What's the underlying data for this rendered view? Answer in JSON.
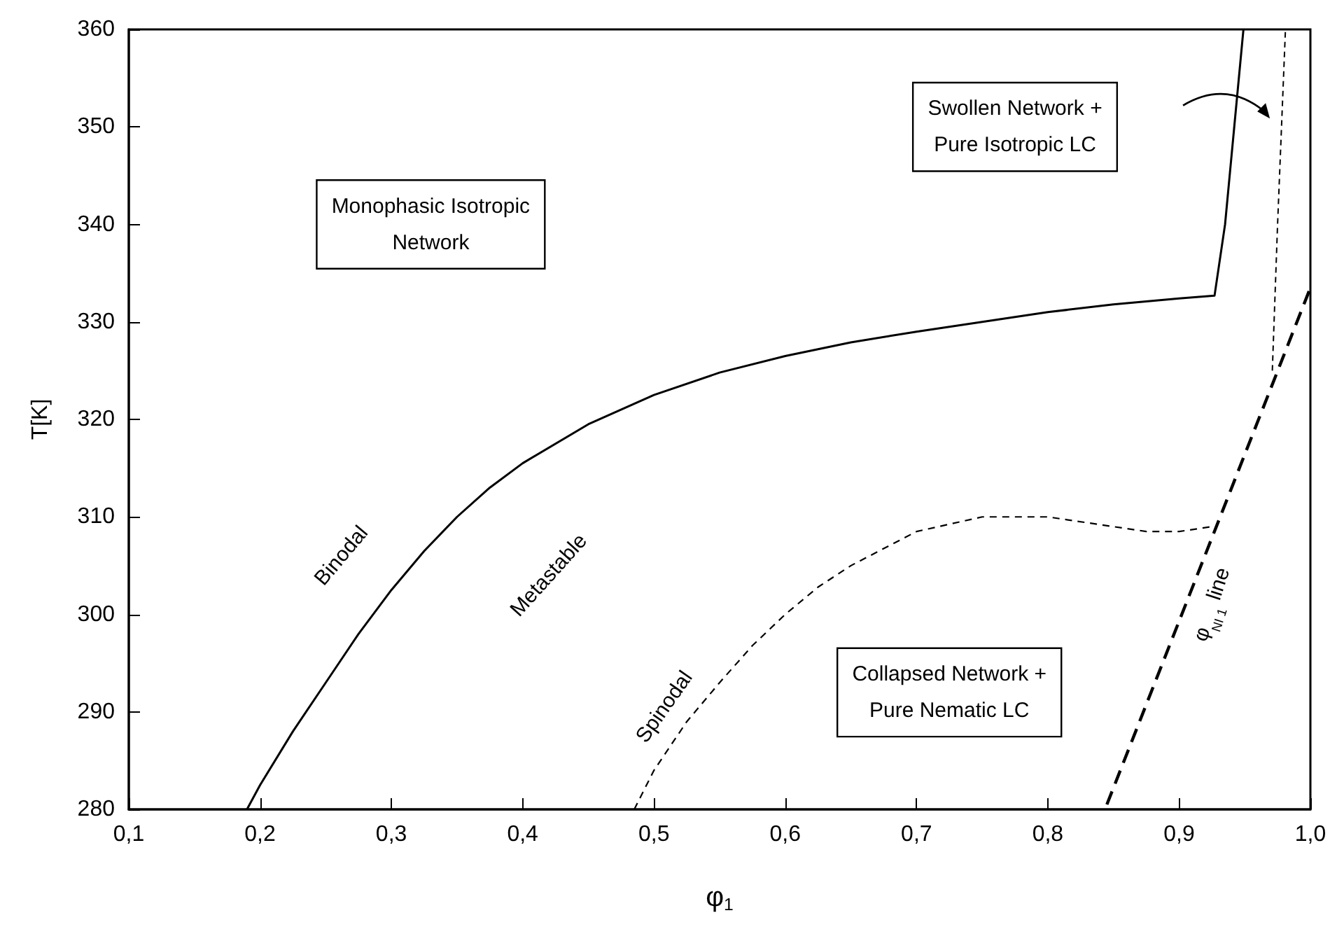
{
  "chart_data": {
    "type": "line",
    "xlabel": "φ$_{1}$",
    "ylabel": "T[K]",
    "xlim": [
      0.1,
      1.0
    ],
    "ylim": [
      280,
      360
    ],
    "xticks": [
      {
        "value": 0.1,
        "label": "0,1"
      },
      {
        "value": 0.2,
        "label": "0,2"
      },
      {
        "value": 0.3,
        "label": "0,3"
      },
      {
        "value": 0.4,
        "label": "0,4"
      },
      {
        "value": 0.5,
        "label": "0,5"
      },
      {
        "value": 0.6,
        "label": "0,6"
      },
      {
        "value": 0.7,
        "label": "0,7"
      },
      {
        "value": 0.8,
        "label": "0,8"
      },
      {
        "value": 0.9,
        "label": "0,9"
      },
      {
        "value": 1.0,
        "label": "1,0"
      }
    ],
    "yticks": [
      280,
      290,
      300,
      310,
      320,
      330,
      340,
      350,
      360
    ],
    "marker": "none",
    "grid": false,
    "series": [
      {
        "color": "#000000",
        "line_style": "solid",
        "x": [
          0.19,
          0.2,
          0.225,
          0.25,
          0.275,
          0.3,
          0.325,
          0.35,
          0.375,
          0.4,
          0.45,
          0.5,
          0.55,
          0.6,
          0.65,
          0.7,
          0.75,
          0.8,
          0.85,
          0.9,
          0.927,
          0.935,
          0.942,
          0.949
        ],
        "values": [
          280,
          282.5,
          288,
          293,
          298,
          302.5,
          306.5,
          310,
          313,
          315.5,
          319.5,
          322.5,
          324.8,
          326.5,
          327.9,
          329,
          330,
          331,
          331.8,
          332.4,
          332.7,
          340,
          350,
          360
        ]
      },
      {
        "color": "#000000",
        "line_style": "dashed",
        "x": [
          0.485,
          0.5,
          0.525,
          0.55,
          0.575,
          0.6,
          0.625,
          0.65,
          0.7,
          0.75,
          0.8,
          0.85,
          0.875,
          0.9,
          0.925
        ],
        "values": [
          280,
          284,
          289,
          293,
          296.8,
          300,
          302.8,
          305,
          308.5,
          310,
          310,
          309,
          308.5,
          308.5,
          309
        ]
      },
      {
        "color": "#000000",
        "line_style": "dashed",
        "x": [
          0.971,
          0.975,
          0.978,
          0.981
        ],
        "values": [
          325,
          340,
          350,
          360
        ]
      },
      {
        "color": "#000000",
        "line_style": "dashed",
        "x": [
          0.845,
          1.0
        ],
        "values": [
          280.5,
          333.5
        ]
      }
    ],
    "annotations": [
      "Monophasic Isotropic\nNetwork",
      "Swollen Network +\nPure Isotropic LC",
      "Collapsed Network +\nPure Nematic LC",
      "Binodal",
      "Metastable",
      "Spinodal",
      "φ$_{NI 1}$ line"
    ]
  }
}
